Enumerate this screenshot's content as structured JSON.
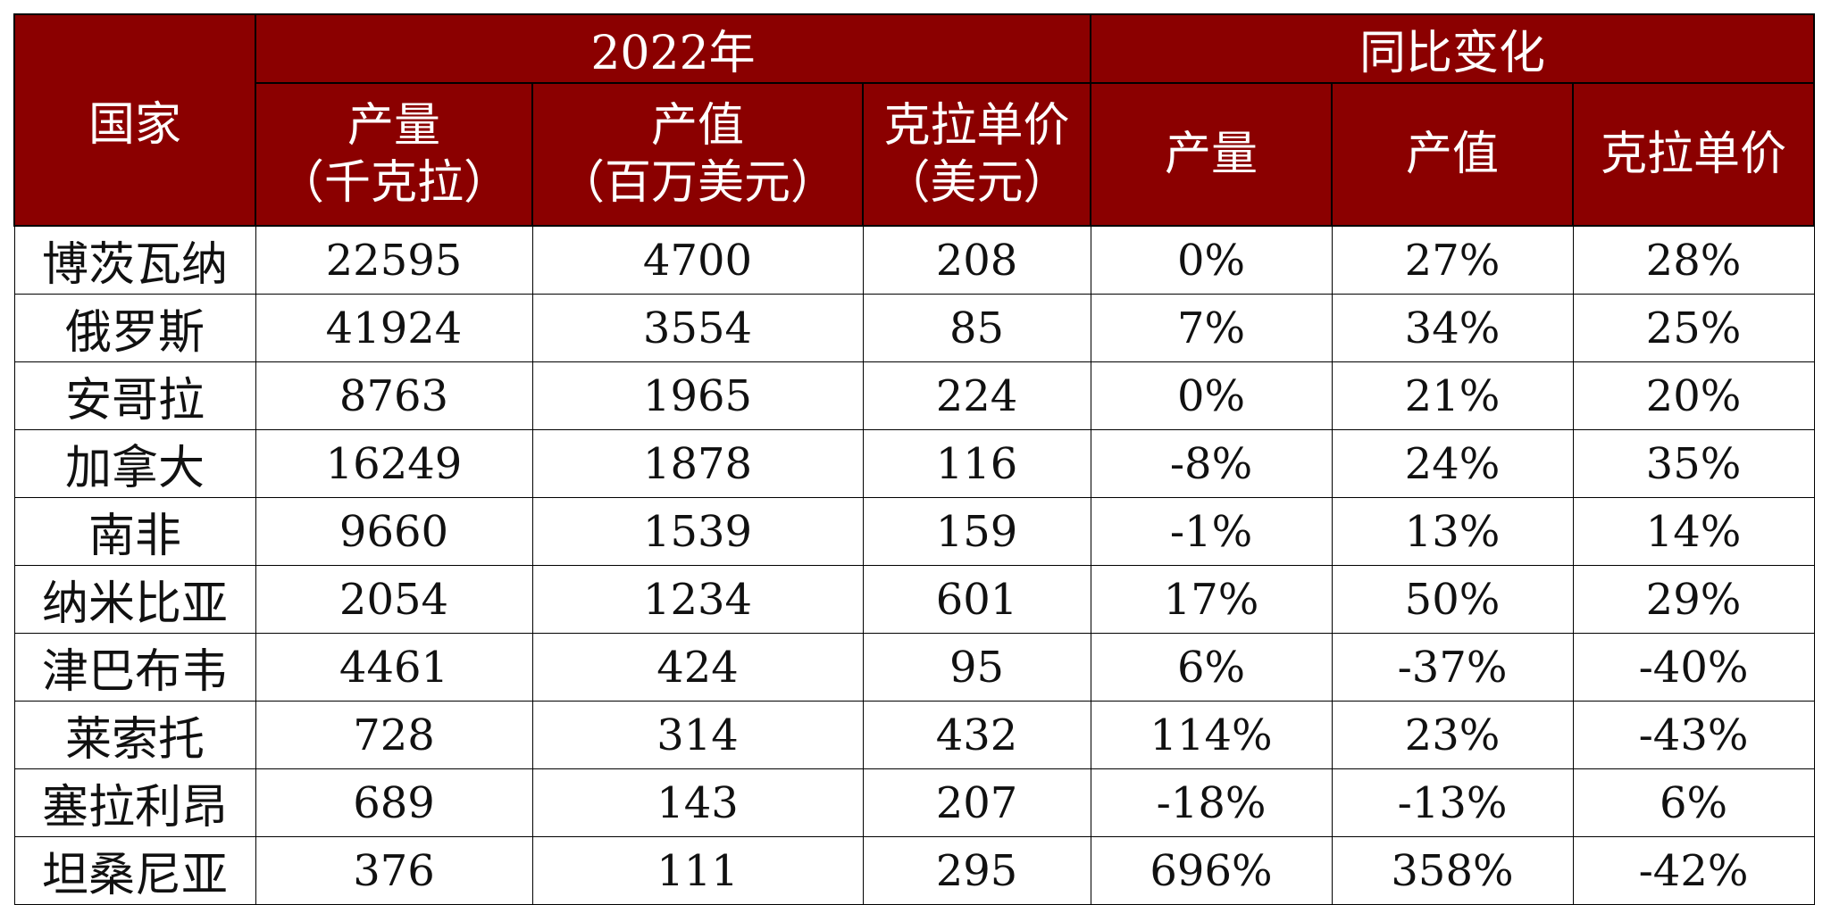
{
  "header": {
    "country": "国家",
    "group_2022": "2022年",
    "group_yoy": "同比变化",
    "prod_2022_l1": "产量",
    "prod_2022_l2": "（千克拉）",
    "value_2022_l1": "产值",
    "value_2022_l2": "（百万美元）",
    "price_2022_l1": "克拉单价",
    "price_2022_l2": "（美元）",
    "prod_yoy": "产量",
    "value_yoy": "产值",
    "price_yoy": "克拉单价"
  },
  "rows": [
    {
      "country": "博茨瓦纳",
      "prod": "22595",
      "value": "4700",
      "price": "208",
      "prod_yoy": "0%",
      "value_yoy": "27%",
      "price_yoy": "28%"
    },
    {
      "country": "俄罗斯",
      "prod": "41924",
      "value": "3554",
      "price": "85",
      "prod_yoy": "7%",
      "value_yoy": "34%",
      "price_yoy": "25%"
    },
    {
      "country": "安哥拉",
      "prod": "8763",
      "value": "1965",
      "price": "224",
      "prod_yoy": "0%",
      "value_yoy": "21%",
      "price_yoy": "20%"
    },
    {
      "country": "加拿大",
      "prod": "16249",
      "value": "1878",
      "price": "116",
      "prod_yoy": "-8%",
      "value_yoy": "24%",
      "price_yoy": "35%"
    },
    {
      "country": "南非",
      "prod": "9660",
      "value": "1539",
      "price": "159",
      "prod_yoy": "-1%",
      "value_yoy": "13%",
      "price_yoy": "14%"
    },
    {
      "country": "纳米比亚",
      "prod": "2054",
      "value": "1234",
      "price": "601",
      "prod_yoy": "17%",
      "value_yoy": "50%",
      "price_yoy": "29%"
    },
    {
      "country": "津巴布韦",
      "prod": "4461",
      "value": "424",
      "price": "95",
      "prod_yoy": "6%",
      "value_yoy": "-37%",
      "price_yoy": "-40%"
    },
    {
      "country": "莱索托",
      "prod": "728",
      "value": "314",
      "price": "432",
      "prod_yoy": "114%",
      "value_yoy": "23%",
      "price_yoy": "-43%"
    },
    {
      "country": "塞拉利昂",
      "prod": "689",
      "value": "143",
      "price": "207",
      "prod_yoy": "-18%",
      "value_yoy": "-13%",
      "price_yoy": "6%"
    },
    {
      "country": "坦桑尼亚",
      "prod": "376",
      "value": "111",
      "price": "295",
      "prod_yoy": "696%",
      "value_yoy": "358%",
      "price_yoy": "-42%"
    }
  ],
  "colors": {
    "header_bg": "#8b0000",
    "header_text": "#ffffff",
    "grid": "#000000"
  }
}
